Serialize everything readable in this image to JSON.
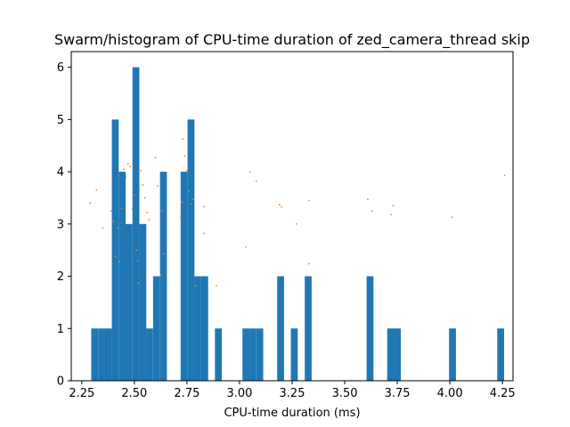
{
  "chart_data": {
    "type": "bar",
    "title": "Swarm/histogram of CPU-time duration of zed_camera_thread skip",
    "xlabel": "CPU-time duration (ms)",
    "ylabel": "",
    "xlim": [
      2.2,
      4.3
    ],
    "ylim": [
      0,
      6.3
    ],
    "xticks": [
      "2.25",
      "2.50",
      "2.75",
      "3.00",
      "3.25",
      "3.50",
      "3.75",
      "4.00",
      "4.25"
    ],
    "yticks": [
      "0",
      "1",
      "2",
      "3",
      "4",
      "5",
      "6"
    ],
    "grid": false,
    "colors": {
      "bars": "#1f77b4",
      "swarm": "#ff7f0e"
    },
    "histogram": {
      "bin_width": 0.0327,
      "bins": [
        {
          "start": 2.295,
          "count": 1
        },
        {
          "start": 2.328,
          "count": 1
        },
        {
          "start": 2.36,
          "count": 1
        },
        {
          "start": 2.393,
          "count": 5
        },
        {
          "start": 2.426,
          "count": 4
        },
        {
          "start": 2.458,
          "count": 3
        },
        {
          "start": 2.491,
          "count": 6
        },
        {
          "start": 2.524,
          "count": 3
        },
        {
          "start": 2.556,
          "count": 1
        },
        {
          "start": 2.589,
          "count": 2
        },
        {
          "start": 2.622,
          "count": 4
        },
        {
          "start": 2.72,
          "count": 4
        },
        {
          "start": 2.753,
          "count": 5
        },
        {
          "start": 2.785,
          "count": 2
        },
        {
          "start": 2.818,
          "count": 2
        },
        {
          "start": 2.883,
          "count": 1
        },
        {
          "start": 3.014,
          "count": 1
        },
        {
          "start": 3.047,
          "count": 1
        },
        {
          "start": 3.08,
          "count": 1
        },
        {
          "start": 3.179,
          "count": 2
        },
        {
          "start": 3.244,
          "count": 1
        },
        {
          "start": 3.31,
          "count": 2
        },
        {
          "start": 3.604,
          "count": 2
        },
        {
          "start": 3.702,
          "count": 1
        },
        {
          "start": 3.734,
          "count": 1
        },
        {
          "start": 3.996,
          "count": 1
        },
        {
          "start": 4.225,
          "count": 1
        }
      ]
    },
    "swarm_points": [
      {
        "x": 2.29,
        "y": 3.4
      },
      {
        "x": 2.32,
        "y": 3.65
      },
      {
        "x": 2.35,
        "y": 2.92
      },
      {
        "x": 2.39,
        "y": 3.25
      },
      {
        "x": 2.4,
        "y": 3.05
      },
      {
        "x": 2.41,
        "y": 2.38
      },
      {
        "x": 2.42,
        "y": 2.93
      },
      {
        "x": 2.43,
        "y": 2.28
      },
      {
        "x": 2.44,
        "y": 3.3
      },
      {
        "x": 2.45,
        "y": 4.05
      },
      {
        "x": 2.46,
        "y": 3.9
      },
      {
        "x": 2.47,
        "y": 4.15
      },
      {
        "x": 2.48,
        "y": 4.1
      },
      {
        "x": 2.49,
        "y": 3.28
      },
      {
        "x": 2.5,
        "y": 3.55
      },
      {
        "x": 2.51,
        "y": 2.5
      },
      {
        "x": 2.515,
        "y": 2.3
      },
      {
        "x": 2.52,
        "y": 1.87
      },
      {
        "x": 2.53,
        "y": 4.02
      },
      {
        "x": 2.54,
        "y": 3.75
      },
      {
        "x": 2.55,
        "y": 3.5
      },
      {
        "x": 2.56,
        "y": 3.22
      },
      {
        "x": 2.57,
        "y": 3.08
      },
      {
        "x": 2.6,
        "y": 4.27
      },
      {
        "x": 2.61,
        "y": 3.73
      },
      {
        "x": 2.625,
        "y": 2.02
      },
      {
        "x": 2.64,
        "y": 2.43
      },
      {
        "x": 2.63,
        "y": 3.25
      },
      {
        "x": 2.72,
        "y": 3.12
      },
      {
        "x": 2.725,
        "y": 3.42
      },
      {
        "x": 2.73,
        "y": 4.63
      },
      {
        "x": 2.74,
        "y": 4.3
      },
      {
        "x": 2.75,
        "y": 4.02
      },
      {
        "x": 2.76,
        "y": 3.63
      },
      {
        "x": 2.77,
        "y": 3.38
      },
      {
        "x": 2.78,
        "y": 3.47
      },
      {
        "x": 2.79,
        "y": 1.82
      },
      {
        "x": 2.83,
        "y": 3.33
      },
      {
        "x": 2.83,
        "y": 2.82
      },
      {
        "x": 2.89,
        "y": 1.82
      },
      {
        "x": 3.03,
        "y": 2.56
      },
      {
        "x": 3.05,
        "y": 4.0
      },
      {
        "x": 3.08,
        "y": 3.82
      },
      {
        "x": 3.19,
        "y": 3.37
      },
      {
        "x": 3.2,
        "y": 3.33
      },
      {
        "x": 3.27,
        "y": 3.0
      },
      {
        "x": 3.33,
        "y": 3.45
      },
      {
        "x": 3.33,
        "y": 2.24
      },
      {
        "x": 3.61,
        "y": 3.47
      },
      {
        "x": 3.63,
        "y": 3.25
      },
      {
        "x": 3.72,
        "y": 3.18
      },
      {
        "x": 3.73,
        "y": 3.35
      },
      {
        "x": 4.01,
        "y": 3.13
      },
      {
        "x": 4.26,
        "y": 3.93
      }
    ]
  }
}
